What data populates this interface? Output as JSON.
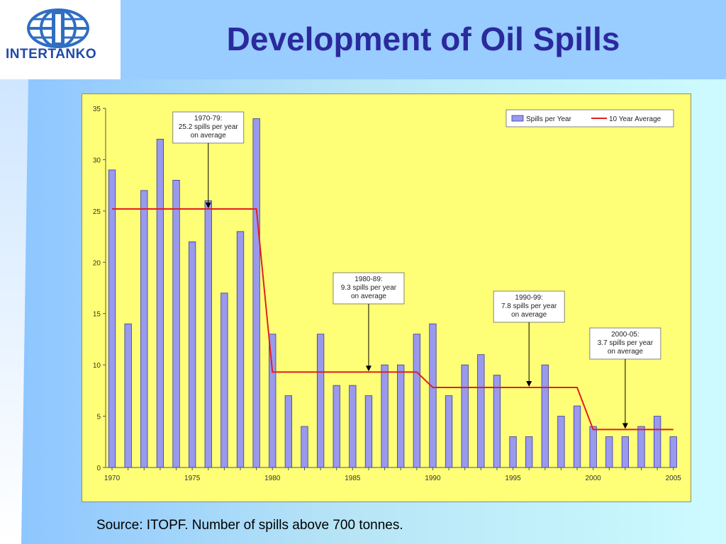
{
  "logo": {
    "text": "INTERTANKO"
  },
  "page": {
    "title": "Development of Oil Spills",
    "source": "Source: ITOPF. Number of spills above 700 tonnes."
  },
  "colors": {
    "bar": "#9999ee",
    "bar_stroke": "#3a3aa0",
    "avg_line": "#e02020",
    "plot_bg": "#ffff77",
    "title": "#2a2a9c"
  },
  "chart_data": {
    "type": "bar",
    "x": [
      1970,
      1971,
      1972,
      1973,
      1974,
      1975,
      1976,
      1977,
      1978,
      1979,
      1980,
      1981,
      1982,
      1983,
      1984,
      1985,
      1986,
      1987,
      1988,
      1989,
      1990,
      1991,
      1992,
      1993,
      1994,
      1995,
      1996,
      1997,
      1998,
      1999,
      2000,
      2001,
      2002,
      2003,
      2004,
      2005
    ],
    "series": [
      {
        "name": "Spills per Year",
        "type": "bar",
        "values": [
          29,
          14,
          27,
          32,
          28,
          22,
          26,
          17,
          23,
          34,
          13,
          7,
          4,
          13,
          8,
          8,
          7,
          10,
          10,
          13,
          14,
          7,
          10,
          11,
          9,
          3,
          3,
          10,
          5,
          6,
          4,
          3,
          3,
          4,
          5,
          3
        ]
      },
      {
        "name": "10 Year Average",
        "type": "step-line",
        "segments": [
          {
            "from": 1970,
            "to": 1979,
            "value": 25.2
          },
          {
            "from": 1980,
            "to": 1989,
            "value": 9.3
          },
          {
            "from": 1990,
            "to": 1999,
            "value": 7.8
          },
          {
            "from": 2000,
            "to": 2005,
            "value": 3.7
          }
        ]
      }
    ],
    "ylim": [
      0,
      35
    ],
    "yticks": [
      0,
      5,
      10,
      15,
      20,
      25,
      30,
      35
    ],
    "xticks": [
      1970,
      1975,
      1980,
      1985,
      1990,
      1995,
      2000,
      2005
    ],
    "legend": "top-right",
    "annotations": [
      {
        "lines": [
          "1970-79:",
          "25.2 spills per year",
          "on average"
        ],
        "arrow_x": 1976,
        "arrow_y": 25.2
      },
      {
        "lines": [
          "1980-89:",
          "9.3 spills per year",
          "on average"
        ],
        "arrow_x": 1986,
        "arrow_y": 9.3
      },
      {
        "lines": [
          "1990-99:",
          "7.8 spills per year",
          "on average"
        ],
        "arrow_x": 1996,
        "arrow_y": 7.8
      },
      {
        "lines": [
          "2000-05:",
          "3.7 spills per year",
          "on average"
        ],
        "arrow_x": 2002,
        "arrow_y": 3.7
      }
    ]
  }
}
